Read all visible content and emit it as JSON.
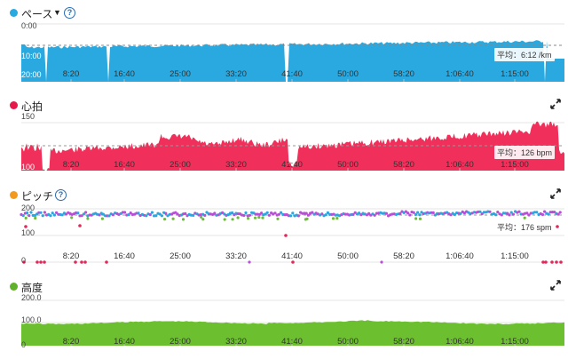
{
  "x_ticks": [
    "8:20",
    "16:40",
    "25:00",
    "33:20",
    "41:40",
    "50:00",
    "58:20",
    "1:06:40",
    "1:15:00"
  ],
  "pace": {
    "title": "ペース",
    "color": "#29a9e0",
    "dropdown_icon": "caret-down-icon",
    "help_icon": "question-circle-icon",
    "y_labels": [
      "0:00",
      "10:00",
      "20:00"
    ],
    "average_label": "平均：6:12 /km"
  },
  "heart_rate": {
    "title": "心拍",
    "color": "#f0305a",
    "expand_icon": "expand-arrows-icon",
    "y_labels": [
      "150",
      "100"
    ],
    "average_label": "平均：126 bpm"
  },
  "cadence": {
    "title": "ピッチ",
    "color": "#f39a1e",
    "help_icon": "question-circle-icon",
    "expand_icon": "expand-arrows-icon",
    "y_labels": [
      "200",
      "100",
      "0"
    ],
    "average_label": "平均：176 spm",
    "point_colors": [
      "#2aa6e0",
      "#b84fd6",
      "#e0285a",
      "#6dbb3a"
    ]
  },
  "elevation": {
    "title": "高度",
    "color": "#6cbf2e",
    "expand_icon": "expand-arrows-icon",
    "y_labels": [
      "200.0",
      "100.0",
      "0"
    ]
  }
}
